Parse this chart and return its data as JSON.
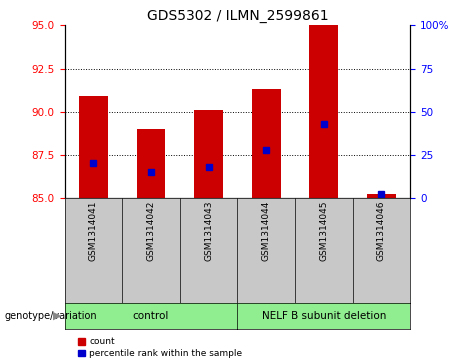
{
  "title": "GDS5302 / ILMN_2599861",
  "samples": [
    "GSM1314041",
    "GSM1314042",
    "GSM1314043",
    "GSM1314044",
    "GSM1314045",
    "GSM1314046"
  ],
  "counts": [
    90.9,
    89.0,
    90.1,
    91.3,
    95.0,
    85.2
  ],
  "percentiles": [
    20,
    15,
    18,
    28,
    43,
    2
  ],
  "count_base": 85,
  "ylim_left": [
    85,
    95
  ],
  "ylim_right": [
    0,
    100
  ],
  "yticks_left": [
    85,
    87.5,
    90,
    92.5,
    95
  ],
  "yticks_right": [
    0,
    25,
    50,
    75,
    100
  ],
  "ytick_labels_right": [
    "0",
    "25",
    "50",
    "75",
    "100%"
  ],
  "bar_color": "#cc0000",
  "dot_color": "#0000cc",
  "bar_width": 0.5,
  "group_bg_color": "#c8c8c8",
  "group_label_row_color": "#90ee90",
  "genotype_label": "genotype/variation",
  "legend_count_label": "count",
  "legend_percentile_label": "percentile rank within the sample",
  "grid_color": "black",
  "title_fontsize": 10,
  "axis_fontsize": 7.5,
  "tick_fontsize": 7,
  "groups_def": [
    {
      "label": "control",
      "start": 0,
      "end": 3
    },
    {
      "label": "NELF B subunit deletion",
      "start": 3,
      "end": 6
    }
  ]
}
